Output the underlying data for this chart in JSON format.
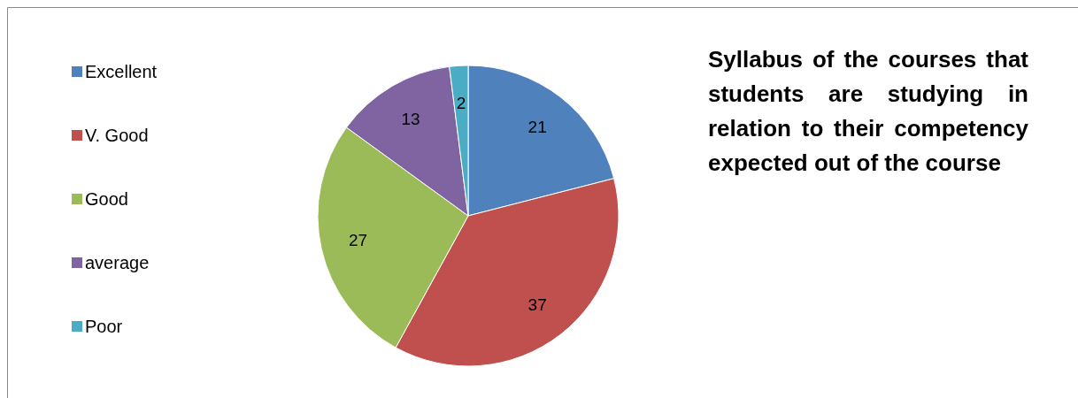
{
  "chart_data": {
    "type": "pie",
    "title": "Syllabus of the courses that students are studying in relation to their competency expected out of the course",
    "categories": [
      "Excellent",
      "V. Good",
      "Good",
      "average",
      "Poor"
    ],
    "values": [
      21,
      37,
      27,
      13,
      2
    ],
    "colors": [
      "#4f81bd",
      "#c0504d",
      "#9bbb59",
      "#8064a2",
      "#4bacc6"
    ],
    "legend": "left",
    "data_labels": true
  }
}
